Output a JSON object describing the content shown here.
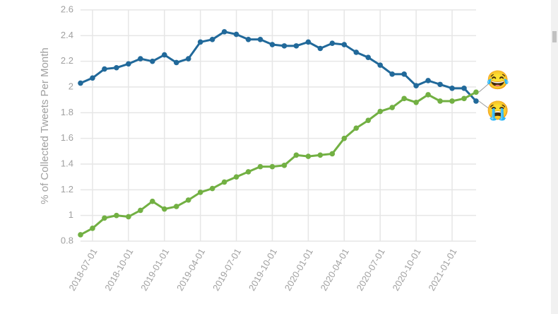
{
  "chart_data": {
    "type": "line",
    "y_label": "% of Collected Tweets Per Month",
    "x": [
      "2018-06-01",
      "2018-07-01",
      "2018-08-01",
      "2018-09-01",
      "2018-10-01",
      "2018-11-01",
      "2018-12-01",
      "2019-01-01",
      "2019-02-01",
      "2019-03-01",
      "2019-04-01",
      "2019-05-01",
      "2019-06-01",
      "2019-07-01",
      "2019-08-01",
      "2019-09-01",
      "2019-10-01",
      "2019-11-01",
      "2019-12-01",
      "2020-01-01",
      "2020-02-01",
      "2020-03-01",
      "2020-04-01",
      "2020-05-01",
      "2020-06-01",
      "2020-07-01",
      "2020-08-01",
      "2020-09-01",
      "2020-10-01",
      "2020-11-01",
      "2020-12-01",
      "2021-01-01",
      "2021-02-01",
      "2021-03-01"
    ],
    "series": [
      {
        "name": "😭",
        "color": "#21699a",
        "values": [
          2.03,
          2.07,
          2.14,
          2.15,
          2.18,
          2.22,
          2.2,
          2.25,
          2.19,
          2.22,
          2.35,
          2.37,
          2.43,
          2.41,
          2.37,
          2.37,
          2.33,
          2.32,
          2.32,
          2.35,
          2.3,
          2.34,
          2.33,
          2.27,
          2.23,
          2.17,
          2.1,
          2.1,
          2.01,
          2.05,
          2.02,
          1.99,
          1.99,
          1.89
        ]
      },
      {
        "name": "😂",
        "color": "#72b043",
        "values": [
          0.85,
          0.9,
          0.98,
          1.0,
          0.99,
          1.04,
          1.11,
          1.05,
          1.07,
          1.12,
          1.18,
          1.21,
          1.26,
          1.3,
          1.34,
          1.38,
          1.38,
          1.39,
          1.47,
          1.46,
          1.47,
          1.48,
          1.6,
          1.68,
          1.74,
          1.81,
          1.84,
          1.91,
          1.88,
          1.94,
          1.89,
          1.89,
          1.91,
          1.96
        ]
      }
    ],
    "xlim": [
      "2018-06-01",
      "2021-03-01"
    ],
    "xticks": [
      "2018-07-01",
      "2018-10-01",
      "2019-01-01",
      "2019-04-01",
      "2019-07-01",
      "2019-10-01",
      "2020-01-01",
      "2020-04-01",
      "2020-07-01",
      "2020-10-01",
      "2021-01-01"
    ],
    "ylim": [
      0.8,
      2.6
    ],
    "yticks": [
      0.8,
      1,
      1.2,
      1.4,
      1.6,
      1.8,
      2,
      2.2,
      2.4,
      2.6
    ],
    "grid": true
  }
}
